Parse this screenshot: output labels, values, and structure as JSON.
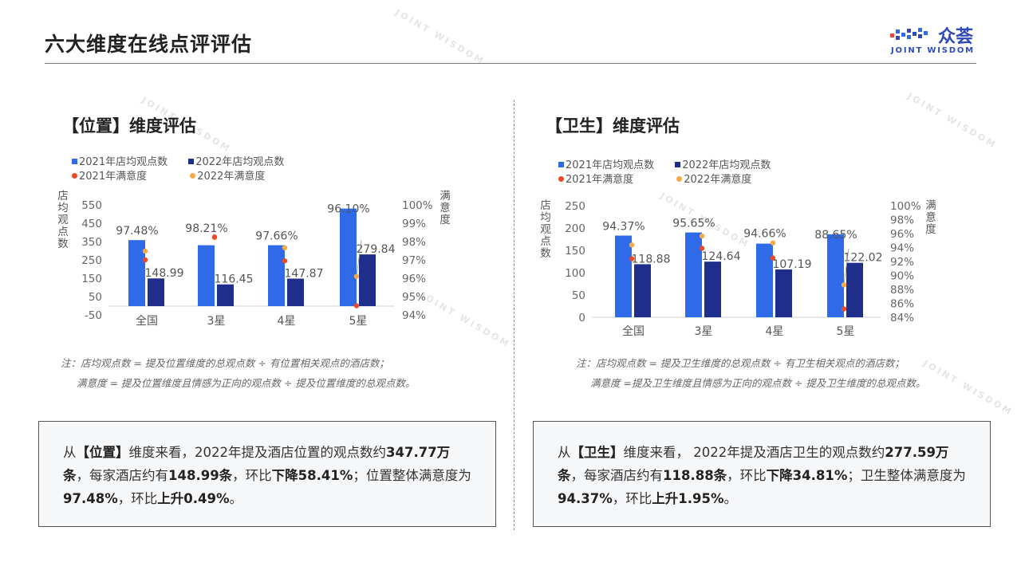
{
  "page": {
    "title": "六大维度在线点评评估"
  },
  "logo": {
    "cn": "众荟",
    "en": "JOINT WISDOM"
  },
  "panels": [
    {
      "heading": "【位置】维度评估",
      "note_line1": "注：店均观点数 = 提及位置维度的总观点数 ÷ 有位置相关观点的酒店数；",
      "note_line2": "满意度 = 提及位置维度且情感为正向的观点数 ÷ 提及位置维度的总观点数。",
      "summary": {
        "p1": "从",
        "p2": "【位置】",
        "p3": "维度来看，2022年提及酒店位置的观点数约",
        "p4": "347.77万条",
        "p5": "，每家酒店约有",
        "p6": "148.99条",
        "p7": "，环比",
        "p8": "下降58.41%",
        "p9": "；位置整体满意度为",
        "p10": "97.48%",
        "p11": "，环比",
        "p12": "上升0.49%",
        "p13": "。"
      }
    },
    {
      "heading": "【卫生】维度评估",
      "note_line1": "注：店均观点数 = 提及卫生维度的总观点数 ÷ 有卫生相关观点的酒店数；",
      "note_line2": "满意度 =提及卫生维度且情感为正向的观点数 ÷ 提及卫生维度的总观点数。",
      "summary": {
        "p1": "从",
        "p2": "【卫生】",
        "p3": "维度来看， 2022年提及酒店卫生的观点数约",
        "p4": "277.59万条",
        "p5": "，每家酒店约有",
        "p6": "118.88条",
        "p7": "，环比",
        "p8": "下降34.81%",
        "p9": "；卫生整体满意度为",
        "p10": "94.37%",
        "p11": "，环比",
        "p12": "上升1.95%",
        "p13": "。"
      }
    }
  ],
  "chart_data": [
    {
      "type": "bar",
      "categories": [
        "全国",
        "3星",
        "4星",
        "5星"
      ],
      "series": [
        {
          "name": "2021年店均观点数",
          "values": [
            358,
            330,
            330,
            530
          ],
          "color": "#2f6ae8",
          "axis": "left",
          "kind": "bar"
        },
        {
          "name": "2022年店均观点数",
          "values": [
            148.99,
            116.45,
            147.87,
            279.84
          ],
          "color": "#1f2e8a",
          "axis": "left",
          "kind": "bar",
          "labels": [
            "148.99",
            "116.45",
            "147.87",
            "279.84"
          ]
        },
        {
          "name": "2021年满意度",
          "values": [
            97.0,
            98.25,
            96.95,
            94.5
          ],
          "color": "#ea4a2a",
          "axis": "right",
          "kind": "dot"
        },
        {
          "name": "2022年满意度",
          "values": [
            97.48,
            98.21,
            97.66,
            96.1
          ],
          "color": "#f5a94a",
          "axis": "right",
          "kind": "dot",
          "labels": [
            "97.48%",
            "98.21%",
            "97.66%",
            "96.10%"
          ]
        }
      ],
      "left_axis": {
        "label": "店均观点数",
        "min": -50,
        "max": 550,
        "ticks": [
          "550",
          "450",
          "350",
          "250",
          "150",
          "50",
          "-50"
        ]
      },
      "right_axis": {
        "label": "满意度",
        "min": 94,
        "max": 100,
        "ticks": [
          "100%",
          "99%",
          "98%",
          "97%",
          "96%",
          "95%",
          "94%"
        ]
      },
      "legend_position": "top-left",
      "grid": false
    },
    {
      "type": "bar",
      "categories": [
        "全国",
        "3星",
        "4星",
        "5星"
      ],
      "series": [
        {
          "name": "2021年店均观点数",
          "values": [
            183,
            190,
            165,
            186
          ],
          "color": "#2f6ae8",
          "axis": "left",
          "kind": "bar"
        },
        {
          "name": "2022年店均观点数",
          "values": [
            118.88,
            124.64,
            107.19,
            122.02
          ],
          "color": "#1f2e8a",
          "axis": "left",
          "kind": "bar",
          "labels": [
            "118.88",
            "124.64",
            "107.19",
            "122.02"
          ]
        },
        {
          "name": "2021年满意度",
          "values": [
            92.4,
            93.9,
            92.5,
            85.2
          ],
          "color": "#ea4a2a",
          "axis": "right",
          "kind": "dot"
        },
        {
          "name": "2022年满意度",
          "values": [
            94.37,
            95.65,
            94.66,
            88.65
          ],
          "color": "#f5a94a",
          "axis": "right",
          "kind": "dot",
          "labels": [
            "94.37%",
            "95.65%",
            "94.66%",
            "88.65%"
          ]
        }
      ],
      "left_axis": {
        "label": "店均观点数",
        "min": 0,
        "max": 250,
        "ticks": [
          "250",
          "200",
          "150",
          "100",
          "50",
          "0"
        ]
      },
      "right_axis": {
        "label": "满意度",
        "min": 84,
        "max": 100,
        "ticks": [
          "100%",
          "98%",
          "96%",
          "94%",
          "92%",
          "90%",
          "88%",
          "86%",
          "84%"
        ]
      },
      "legend_position": "top-left",
      "grid": false
    }
  ]
}
